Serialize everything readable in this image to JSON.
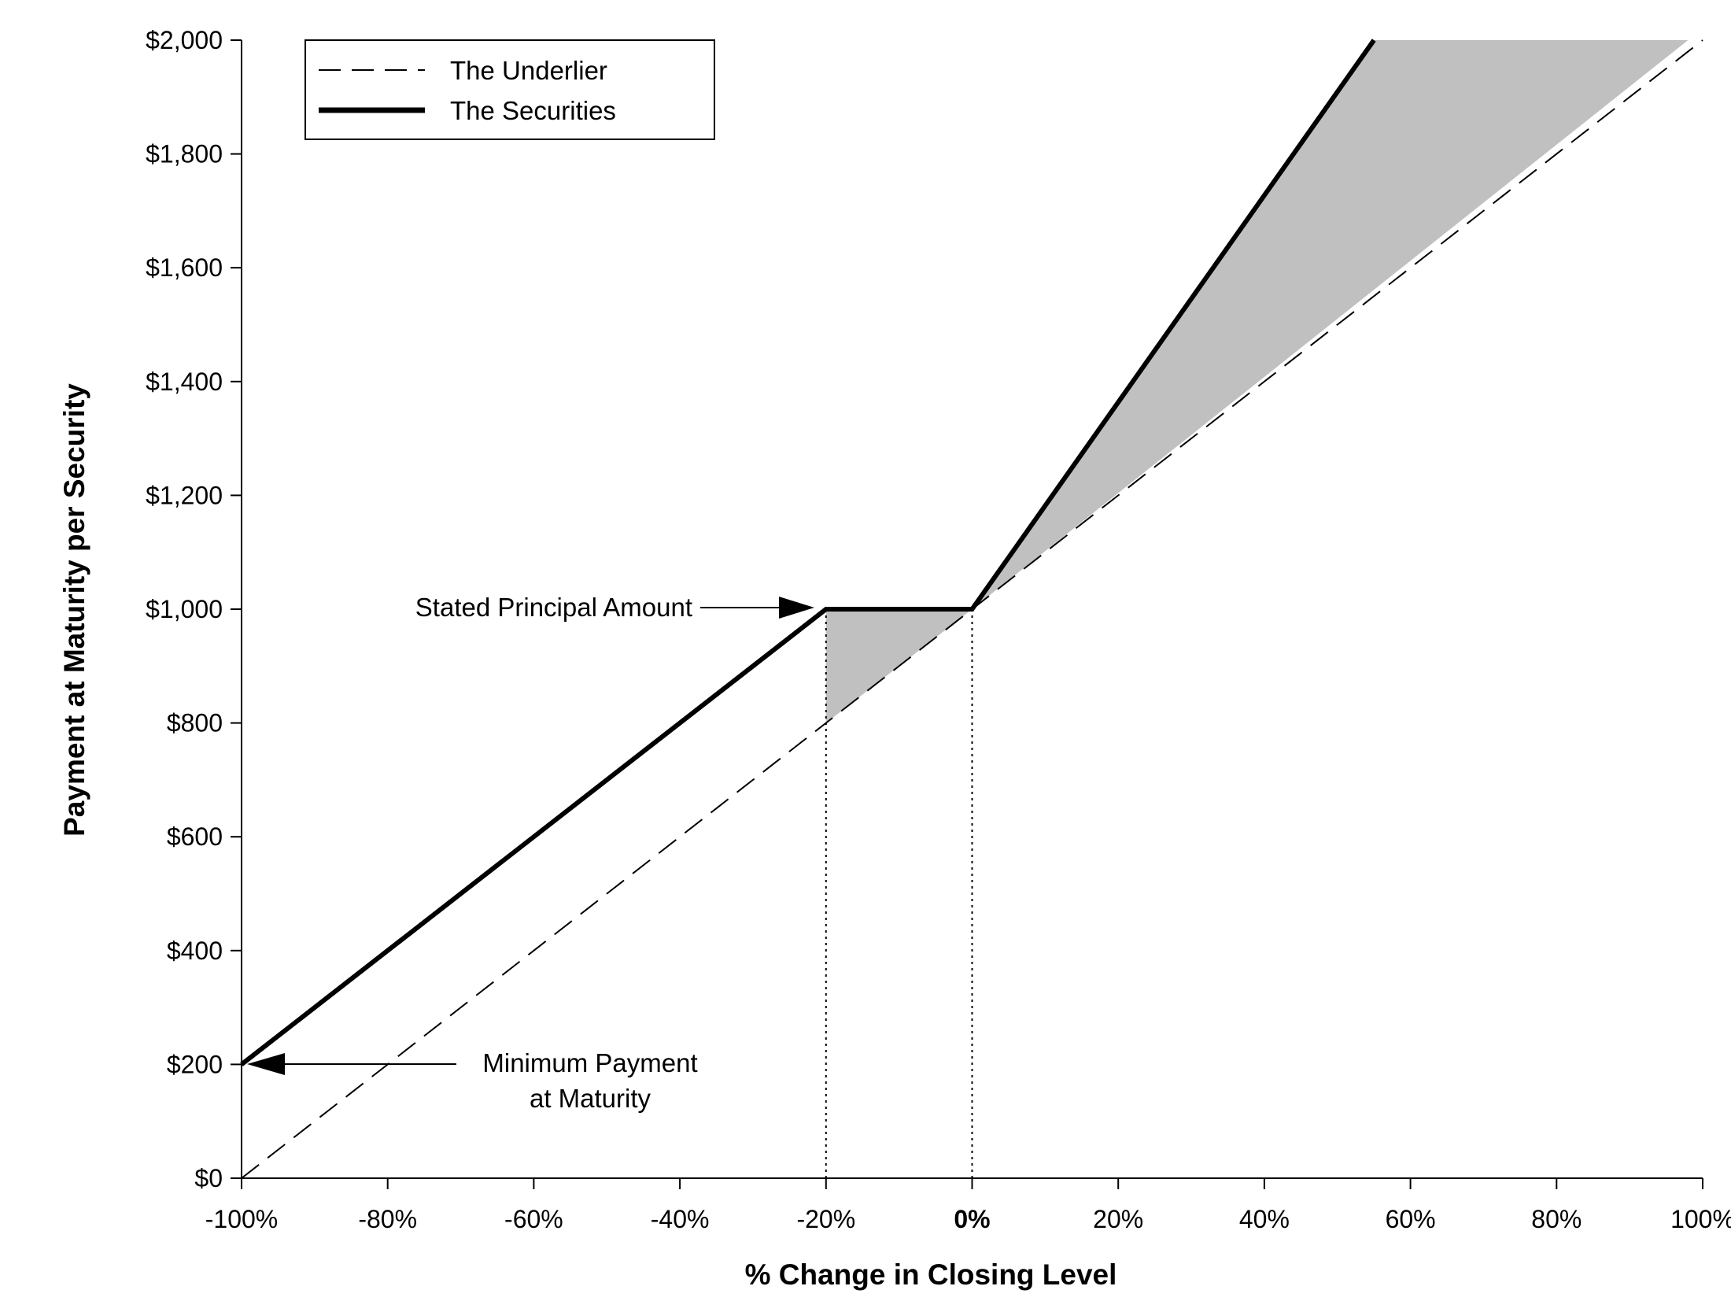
{
  "chart_data": {
    "type": "line",
    "title": "",
    "xlabel": "% Change in Closing Level",
    "ylabel": "Payment at Maturity per Security",
    "xlim": [
      -100,
      100
    ],
    "ylim": [
      0,
      2000
    ],
    "xticks": [
      -100,
      -80,
      -60,
      -40,
      -20,
      0,
      20,
      40,
      60,
      80,
      100
    ],
    "xtick_labels": [
      "-100%",
      "-80%",
      "-60%",
      "-40%",
      "-20%",
      "0%",
      "20%",
      "40%",
      "60%",
      "80%",
      "100%"
    ],
    "xtick_bold_index": 5,
    "yticks": [
      0,
      200,
      400,
      600,
      800,
      1000,
      1200,
      1400,
      1600,
      1800,
      2000
    ],
    "ytick_labels": [
      "$0",
      "$200",
      "$400",
      "$600",
      "$800",
      "$1,000",
      "$1,200",
      "$1,400",
      "$1,600",
      "$1,800",
      "$2,000"
    ],
    "grid": false,
    "legend_position": "top-left",
    "series": [
      {
        "name": "The Underlier",
        "style": "dashed",
        "color": "#000000",
        "x": [
          -100,
          100
        ],
        "y": [
          0,
          2000
        ]
      },
      {
        "name": "The Securities",
        "style": "solid-thick",
        "color": "#000000",
        "x": [
          -100,
          -20,
          0,
          55
        ],
        "y": [
          200,
          1000,
          1000,
          2000
        ]
      }
    ],
    "shaded_regions": [
      {
        "color": "#c0c0c0",
        "x": [
          -20,
          0,
          -20
        ],
        "y": [
          1000,
          1000,
          800
        ]
      },
      {
        "color": "#c0c0c0",
        "x": [
          0,
          55,
          98
        ],
        "y": [
          1000,
          2000,
          2000
        ]
      }
    ],
    "reference_lines": [
      {
        "orientation": "vertical",
        "x": -20,
        "y_from": 0,
        "y_to": 1000,
        "style": "dotted"
      },
      {
        "orientation": "vertical",
        "x": 0,
        "y_from": 0,
        "y_to": 1000,
        "style": "dotted"
      }
    ],
    "annotations": [
      {
        "id": "principal",
        "lines": [
          "Stated Principal Amount"
        ],
        "arrow_to": {
          "x": -20,
          "y": 1000
        }
      },
      {
        "id": "minimum",
        "lines": [
          "Minimum Payment",
          "at Maturity"
        ],
        "arrow_to": {
          "x": -100,
          "y": 200
        }
      }
    ]
  }
}
